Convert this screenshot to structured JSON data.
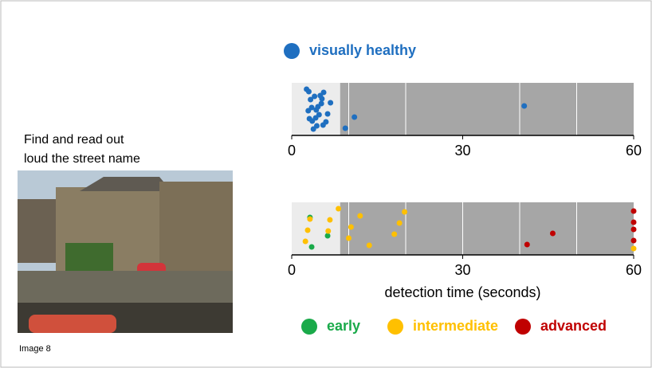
{
  "slide": {
    "instruction": [
      "Find and read out",
      "loud the street name"
    ],
    "image_caption": "Image 8"
  },
  "chart_data": [
    {
      "type": "strip",
      "series": [
        {
          "name": "visually healthy",
          "color": "#1f6fc0",
          "values": [
            2.6,
            3.1,
            3.5,
            4.0,
            4.4,
            4.8,
            5.2,
            5.6,
            6.0,
            2.9,
            3.3,
            3.8,
            4.2,
            4.6,
            5.0,
            5.5,
            6.3,
            6.8,
            3.0,
            3.6,
            4.3,
            5.3,
            9.4,
            11.0,
            40.8
          ]
        }
      ],
      "xlim": [
        0,
        60
      ],
      "xticks": [
        0,
        30,
        60
      ],
      "grid_x": [
        10,
        20,
        40,
        50
      ],
      "highlight_xlim": [
        0,
        8.5
      ]
    },
    {
      "type": "strip",
      "xlabel": "detection time (seconds)",
      "series": [
        {
          "name": "early",
          "color": "#1aaa4a",
          "values": [
            3.2,
            3.5,
            6.3
          ]
        },
        {
          "name": "intermediate",
          "color": "#ffc000",
          "values": [
            6.4,
            6.7,
            8.2,
            10.0,
            10.4,
            12.0,
            13.6,
            18.0,
            18.9,
            19.8,
            2.4,
            2.8,
            3.2,
            60
          ]
        },
        {
          "name": "advanced",
          "color": "#c00000",
          "values": [
            41.3,
            45.8,
            60,
            60,
            60,
            60
          ]
        }
      ],
      "xlim": [
        0,
        60
      ],
      "xticks": [
        0,
        30,
        60
      ],
      "grid_x": [
        10,
        20,
        30,
        40,
        50
      ],
      "highlight_xlim": [
        0,
        8.5
      ]
    }
  ]
}
